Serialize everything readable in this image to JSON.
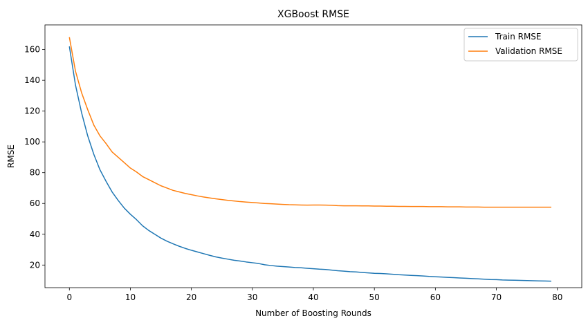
{
  "chart_data": {
    "type": "line",
    "title": "XGBoost RMSE",
    "xlabel": "Number of Boosting Rounds",
    "ylabel": "RMSE",
    "xlim": [
      -4,
      84
    ],
    "ylim": [
      5.3,
      176
    ],
    "xticks": [
      0,
      10,
      20,
      30,
      40,
      50,
      60,
      70,
      80
    ],
    "yticks": [
      20,
      40,
      60,
      80,
      100,
      120,
      140,
      160
    ],
    "grid": false,
    "legend_position": "top-right",
    "x": [
      0,
      1,
      2,
      3,
      4,
      5,
      6,
      7,
      8,
      9,
      10,
      11,
      12,
      13,
      14,
      15,
      16,
      17,
      18,
      19,
      20,
      21,
      22,
      23,
      24,
      25,
      26,
      27,
      28,
      29,
      30,
      31,
      32,
      33,
      34,
      35,
      36,
      37,
      38,
      39,
      40,
      41,
      42,
      43,
      44,
      45,
      46,
      47,
      48,
      49,
      50,
      51,
      52,
      53,
      54,
      55,
      56,
      57,
      58,
      59,
      60,
      61,
      62,
      63,
      64,
      65,
      66,
      67,
      68,
      69,
      70,
      71,
      72,
      73,
      74,
      75,
      76,
      77,
      78,
      79
    ],
    "series": [
      {
        "name": "Train RMSE",
        "color": "#1f77b4",
        "values": [
          162,
          137,
          119,
          104,
          92,
          82,
          74.5,
          67.5,
          62,
          57,
          53,
          49.5,
          45.5,
          42.5,
          40,
          37.5,
          35.5,
          33.8,
          32.2,
          30.8,
          29.6,
          28.5,
          27.4,
          26.3,
          25.3,
          24.5,
          23.8,
          23.1,
          22.6,
          22,
          21.5,
          21,
          20.2,
          19.7,
          19.3,
          19,
          18.7,
          18.4,
          18.2,
          17.9,
          17.6,
          17.3,
          17.1,
          16.7,
          16.3,
          16,
          15.7,
          15.5,
          15.2,
          14.9,
          14.6,
          14.5,
          14.3,
          14,
          13.7,
          13.5,
          13.3,
          13.1,
          12.9,
          12.6,
          12.4,
          12.2,
          12,
          11.8,
          11.6,
          11.4,
          11.2,
          11,
          10.8,
          10.6,
          10.5,
          10.3,
          10.2,
          10.1,
          10,
          9.9,
          9.8,
          9.7,
          9.6,
          9.5
        ]
      },
      {
        "name": "Validation RMSE",
        "color": "#ff7f0e",
        "values": [
          168,
          146,
          132,
          121,
          111,
          104,
          99,
          93.5,
          90,
          86.5,
          83,
          80.5,
          77.5,
          75.5,
          73.5,
          71.5,
          70,
          68.5,
          67.5,
          66.5,
          65.7,
          64.9,
          64.2,
          63.6,
          63,
          62.5,
          62,
          61.6,
          61.2,
          60.9,
          60.6,
          60.3,
          60,
          59.8,
          59.6,
          59.4,
          59.2,
          59.1,
          59,
          58.9,
          59,
          59,
          58.9,
          58.8,
          58.6,
          58.5,
          58.5,
          58.5,
          58.4,
          58.4,
          58.3,
          58.3,
          58.2,
          58.2,
          58.1,
          58.1,
          58,
          58,
          58,
          57.9,
          57.9,
          57.9,
          57.8,
          57.8,
          57.8,
          57.7,
          57.7,
          57.7,
          57.6,
          57.6,
          57.6,
          57.6,
          57.6,
          57.6,
          57.6,
          57.6,
          57.6,
          57.6,
          57.6,
          57.6
        ]
      }
    ]
  }
}
